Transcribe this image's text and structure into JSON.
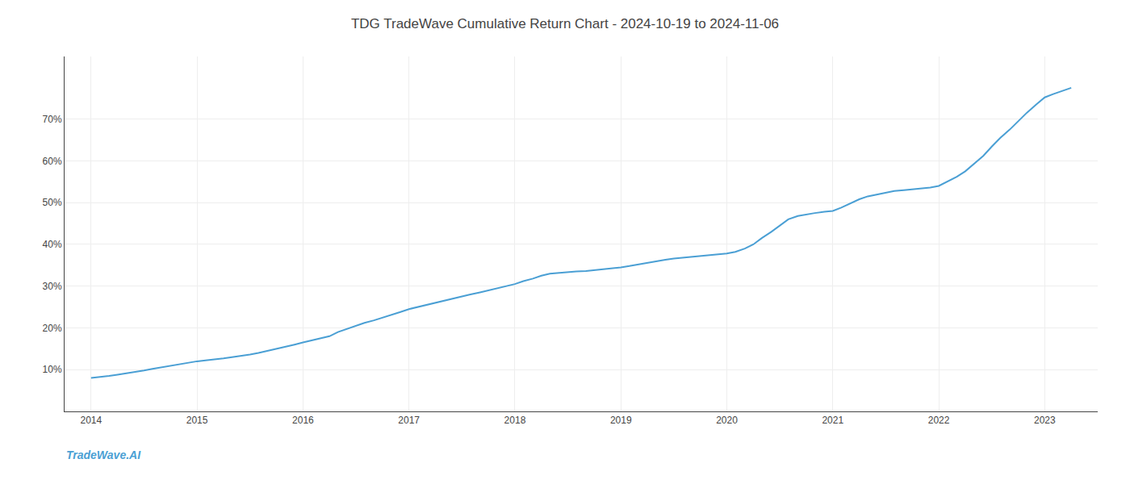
{
  "chart_data": {
    "type": "line",
    "title": "TDG TradeWave Cumulative Return Chart - 2024-10-19 to 2024-11-06",
    "annotations": [
      "TradeWave.AI"
    ],
    "x": [
      2014.0,
      2014.08,
      2014.17,
      2014.25,
      2014.33,
      2014.42,
      2014.5,
      2014.58,
      2014.67,
      2014.75,
      2014.83,
      2014.92,
      2015.0,
      2015.08,
      2015.17,
      2015.25,
      2015.33,
      2015.42,
      2015.5,
      2015.58,
      2015.67,
      2015.75,
      2015.83,
      2015.92,
      2016.0,
      2016.08,
      2016.17,
      2016.25,
      2016.33,
      2016.42,
      2016.5,
      2016.58,
      2016.67,
      2016.75,
      2016.83,
      2016.92,
      2017.0,
      2017.08,
      2017.17,
      2017.25,
      2017.33,
      2017.42,
      2017.5,
      2017.58,
      2017.67,
      2017.75,
      2017.83,
      2017.92,
      2018.0,
      2018.08,
      2018.17,
      2018.25,
      2018.33,
      2018.42,
      2018.5,
      2018.58,
      2018.67,
      2018.75,
      2018.83,
      2018.92,
      2019.0,
      2019.08,
      2019.17,
      2019.25,
      2019.33,
      2019.42,
      2019.5,
      2019.58,
      2019.67,
      2019.75,
      2019.83,
      2019.92,
      2020.0,
      2020.08,
      2020.17,
      2020.25,
      2020.33,
      2020.42,
      2020.5,
      2020.58,
      2020.67,
      2020.75,
      2020.83,
      2020.92,
      2021.0,
      2021.08,
      2021.17,
      2021.25,
      2021.33,
      2021.42,
      2021.5,
      2021.58,
      2021.67,
      2021.75,
      2021.83,
      2021.92,
      2022.0,
      2022.08,
      2022.17,
      2022.25,
      2022.33,
      2022.42,
      2022.5,
      2022.58,
      2022.67,
      2022.75,
      2022.83,
      2022.92,
      2023.0,
      2023.08,
      2023.17,
      2023.25
    ],
    "values": [
      0.08,
      0.082,
      0.085,
      0.088,
      0.091,
      0.095,
      0.098,
      0.102,
      0.106,
      0.11,
      0.113,
      0.117,
      0.12,
      0.122,
      0.124,
      0.127,
      0.13,
      0.133,
      0.136,
      0.14,
      0.145,
      0.15,
      0.155,
      0.16,
      0.165,
      0.17,
      0.175,
      0.18,
      0.19,
      0.198,
      0.205,
      0.212,
      0.218,
      0.224,
      0.23,
      0.238,
      0.245,
      0.25,
      0.255,
      0.26,
      0.265,
      0.27,
      0.275,
      0.28,
      0.285,
      0.29,
      0.295,
      0.3,
      0.305,
      0.312,
      0.318,
      0.325,
      0.33,
      0.332,
      0.334,
      0.335,
      0.336,
      0.338,
      0.34,
      0.342,
      0.345,
      0.348,
      0.352,
      0.356,
      0.36,
      0.363,
      0.366,
      0.368,
      0.37,
      0.372,
      0.374,
      0.376,
      0.378,
      0.382,
      0.39,
      0.4,
      0.415,
      0.43,
      0.445,
      0.46,
      0.468,
      0.472,
      0.475,
      0.478,
      0.48,
      0.488,
      0.498,
      0.508,
      0.515,
      0.52,
      0.525,
      0.528,
      0.53,
      0.532,
      0.534,
      0.536,
      0.54,
      0.55,
      0.562,
      0.575,
      0.592,
      0.612,
      0.634,
      0.655,
      0.675,
      0.695,
      0.715,
      0.735,
      0.752,
      0.76,
      0.768,
      0.775
    ],
    "color": "#4a9fd4",
    "xlim": [
      2013.75,
      2023.5
    ],
    "xticks": [
      2014,
      2015,
      2016,
      2017,
      2018,
      2019,
      2020,
      2021,
      2022,
      2023
    ],
    "ylim": [
      0.0,
      0.85
    ],
    "yticks": [
      {
        "value": 0.1,
        "label": "10%"
      },
      {
        "value": 0.2,
        "label": "20%"
      },
      {
        "value": 0.3,
        "label": "30%"
      },
      {
        "value": 0.4,
        "label": "40%"
      },
      {
        "value": 0.5,
        "label": "50%"
      },
      {
        "value": 0.6,
        "label": "60%"
      },
      {
        "value": 0.7,
        "label": "70%"
      }
    ],
    "grid": true
  }
}
